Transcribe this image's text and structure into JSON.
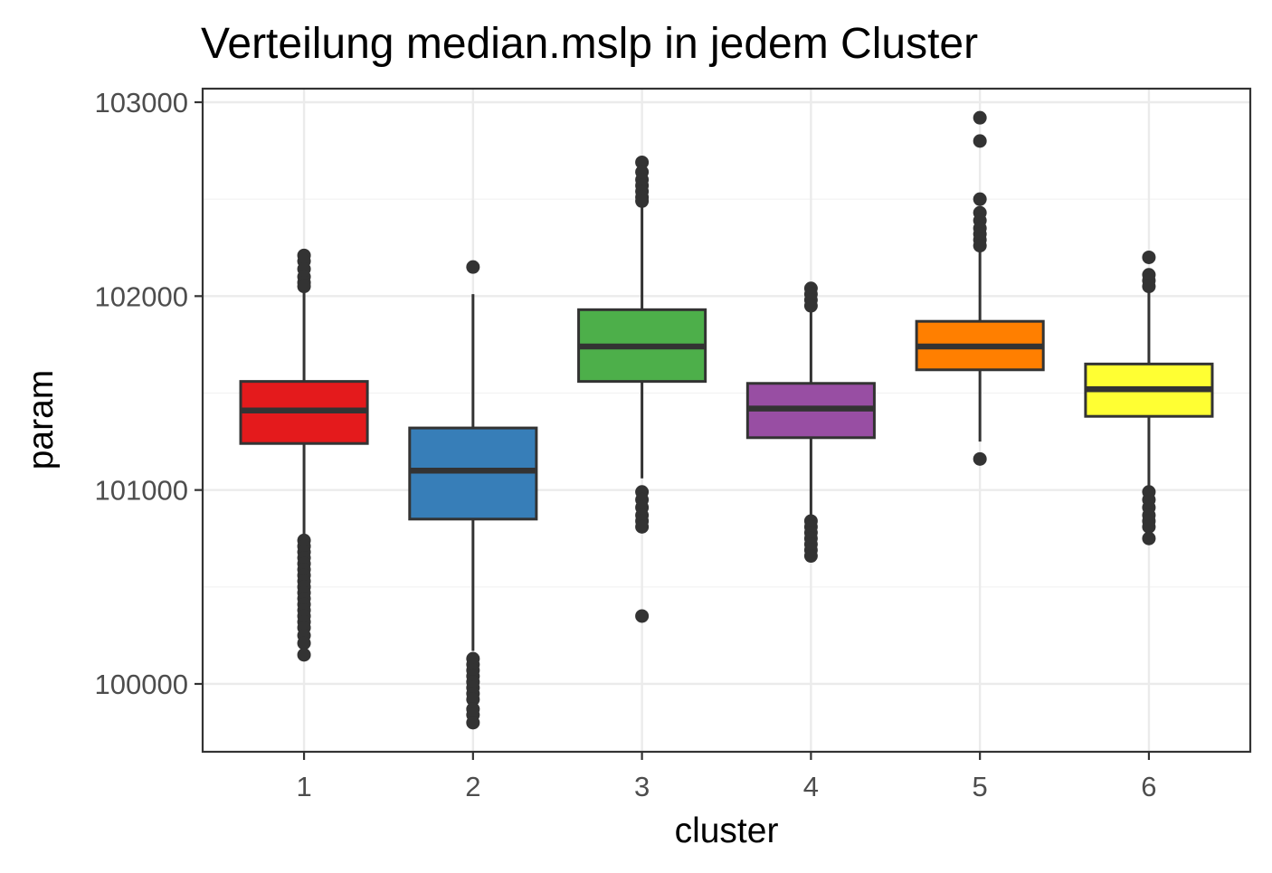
{
  "chart_data": {
    "type": "boxplot",
    "title": "Verteilung median.mslp in jedem Cluster",
    "xlabel": "cluster",
    "ylabel": "param",
    "categories": [
      "1",
      "2",
      "3",
      "4",
      "5",
      "6"
    ],
    "ylim": [
      99650,
      103070
    ],
    "yticks": [
      100000,
      101000,
      102000,
      103000
    ],
    "y_tick_labels": [
      "100000",
      "101000",
      "102000",
      "103000"
    ],
    "grid": true,
    "legend": "none",
    "box_outline_color": "#333333",
    "series": [
      {
        "cluster": "1",
        "color": "#E41A1C",
        "whisker_low": 100770,
        "q1": 101240,
        "median": 101410,
        "q3": 101560,
        "whisker_high": 102040,
        "outliers": [
          102210,
          102180,
          102140,
          102100,
          102070,
          102050,
          100740,
          100710,
          100680,
          100650,
          100620,
          100590,
          100560,
          100530,
          100500,
          100470,
          100440,
          100410,
          100380,
          100350,
          100320,
          100290,
          100250,
          100210,
          100150
        ]
      },
      {
        "cluster": "2",
        "color": "#377EB8",
        "whisker_low": 100170,
        "q1": 100850,
        "median": 101100,
        "q3": 101320,
        "whisker_high": 102010,
        "outliers": [
          102150,
          100130,
          100100,
          100070,
          100040,
          100010,
          99980,
          99950,
          99920,
          99870,
          99840,
          99800
        ]
      },
      {
        "cluster": "3",
        "color": "#4DAF4A",
        "whisker_low": 101060,
        "q1": 101560,
        "median": 101740,
        "q3": 101930,
        "whisker_high": 102460,
        "outliers": [
          102690,
          102640,
          102600,
          102570,
          102540,
          102510,
          102490,
          100990,
          100950,
          100910,
          100870,
          100840,
          100810,
          100350
        ]
      },
      {
        "cluster": "4",
        "color": "#984EA3",
        "whisker_low": 100870,
        "q1": 101270,
        "median": 101420,
        "q3": 101550,
        "whisker_high": 101930,
        "outliers": [
          102040,
          102010,
          101980,
          101950,
          100840,
          100810,
          100780,
          100750,
          100720,
          100690,
          100660
        ]
      },
      {
        "cluster": "5",
        "color": "#FF7F00",
        "whisker_low": 101250,
        "q1": 101620,
        "median": 101740,
        "q3": 101870,
        "whisker_high": 102240,
        "outliers": [
          102920,
          102800,
          102500,
          102430,
          102390,
          102350,
          102320,
          102290,
          102260,
          101160
        ]
      },
      {
        "cluster": "6",
        "color": "#FFFF33",
        "whisker_low": 101010,
        "q1": 101380,
        "median": 101520,
        "q3": 101650,
        "whisker_high": 102020,
        "outliers": [
          102200,
          102110,
          102080,
          102050,
          100990,
          100950,
          100910,
          100870,
          100840,
          100810,
          100750
        ]
      }
    ]
  }
}
